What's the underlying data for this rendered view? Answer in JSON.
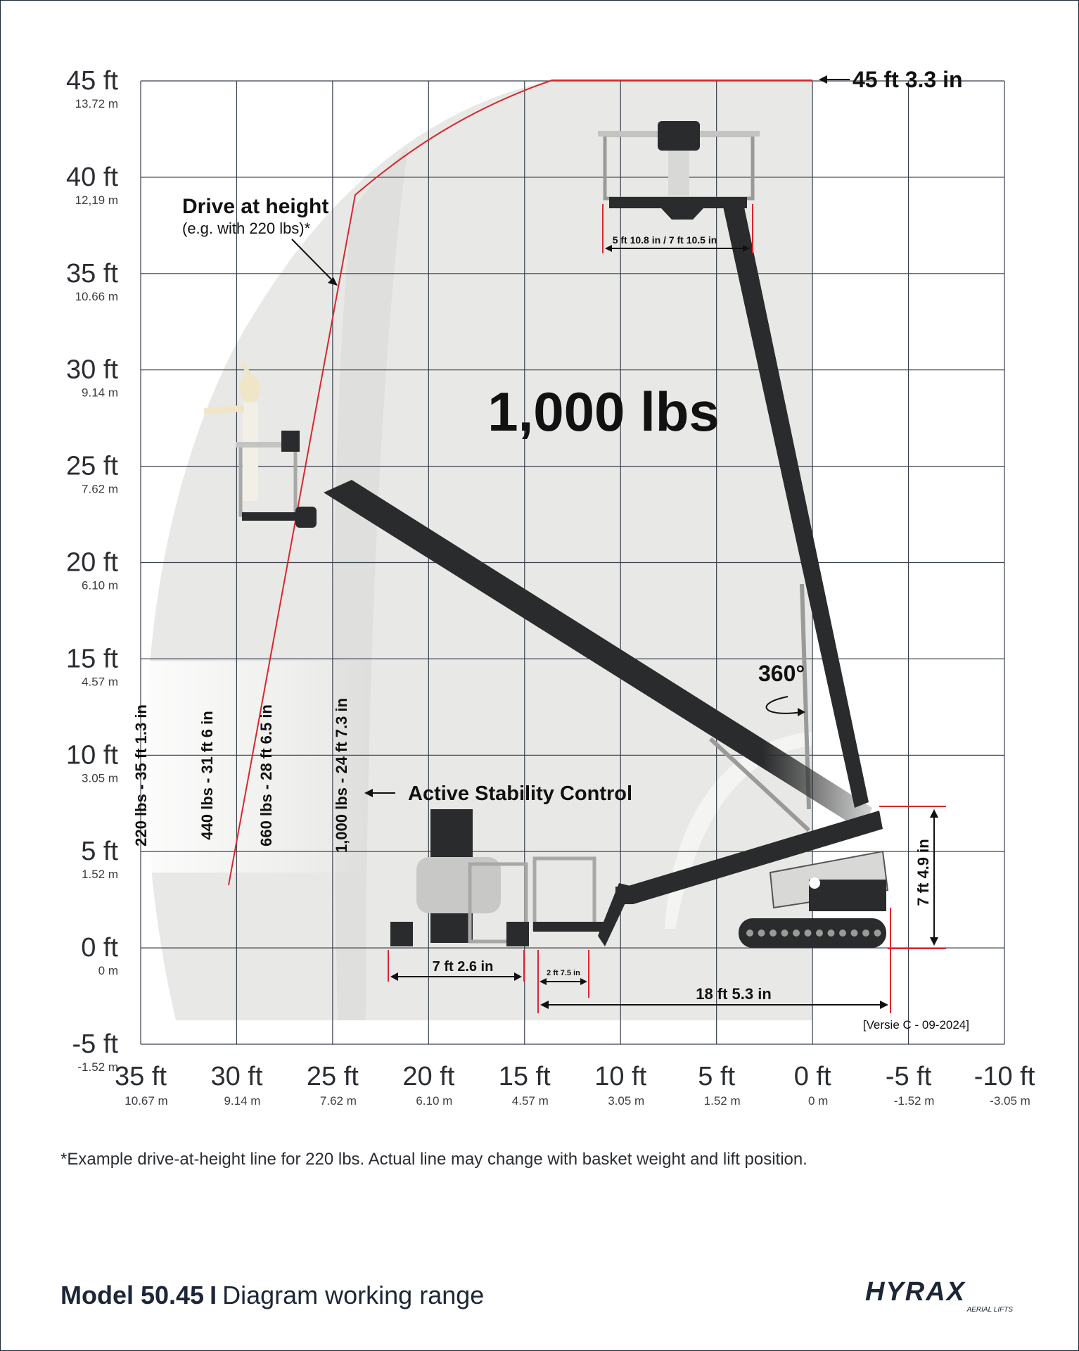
{
  "y_axis": [
    {
      "ft": "45 ft",
      "m": "13.72 m"
    },
    {
      "ft": "40 ft",
      "m": "12,19 m"
    },
    {
      "ft": "35 ft",
      "m": "10.66 m"
    },
    {
      "ft": "30 ft",
      "m": "9.14 m"
    },
    {
      "ft": "25 ft",
      "m": "7.62 m"
    },
    {
      "ft": "20 ft",
      "m": "6.10 m"
    },
    {
      "ft": "15 ft",
      "m": "4.57 m"
    },
    {
      "ft": "10 ft",
      "m": "3.05 m"
    },
    {
      "ft": "5 ft",
      "m": "1.52 m"
    },
    {
      "ft": "0 ft",
      "m": "0 m"
    },
    {
      "ft": "-5 ft",
      "m": "-1.52 m"
    }
  ],
  "x_axis": [
    {
      "ft": "35 ft",
      "m": "10.67 m"
    },
    {
      "ft": "30 ft",
      "m": "9.14 m"
    },
    {
      "ft": "25 ft",
      "m": "7.62 m"
    },
    {
      "ft": "20 ft",
      "m": "6.10 m"
    },
    {
      "ft": "15 ft",
      "m": "4.57 m"
    },
    {
      "ft": "10 ft",
      "m": "3.05 m"
    },
    {
      "ft": "5 ft",
      "m": "1.52 m"
    },
    {
      "ft": "0 ft",
      "m": "0 m"
    },
    {
      "ft": "-5 ft",
      "m": "-1.52 m"
    },
    {
      "ft": "-10 ft",
      "m": "-3.05 m"
    }
  ],
  "annotations": {
    "max_height": "45 ft 3.3 in",
    "drive_at_height_title": "Drive at height",
    "drive_at_height_sub": "(e.g. with 220 lbs)*",
    "capacity": "1,000 lbs",
    "rotation": "360°",
    "active_stability": "Active Stability Control",
    "basket_width": "5 ft 10.8 in / 7 ft 10.5 in",
    "base_width": "7 ft 2.6 in",
    "basket_offset": "2 ft 7.5 in",
    "machine_length": "18 ft 5.3 in",
    "machine_height": "7 ft 4.9 in",
    "version": "[Versie C - 09-2024]",
    "load_outreach": [
      "220 lbs - 35 ft 1.3 in",
      "440 lbs - 31 ft 6 in",
      "660 lbs - 28 ft 6.5 in",
      "1,000 lbs - 24 ft 7.3 in"
    ]
  },
  "footnote": "*Example drive-at-height line for 220 lbs. Actual line may change with basket weight and lift position.",
  "title": {
    "model": "Model 50.45",
    "separator": "I",
    "subtitle": "Diagram working range"
  },
  "brand": {
    "name": "HYRAX",
    "tagline": "AERIAL LIFTS",
    "color": "#1c2636"
  },
  "colors": {
    "grid": "#3a414c",
    "envelope": "#e6e6e4",
    "boom": "#2a2b2c",
    "drive_line": "#d8282c",
    "dimension": "#d8282c"
  }
}
